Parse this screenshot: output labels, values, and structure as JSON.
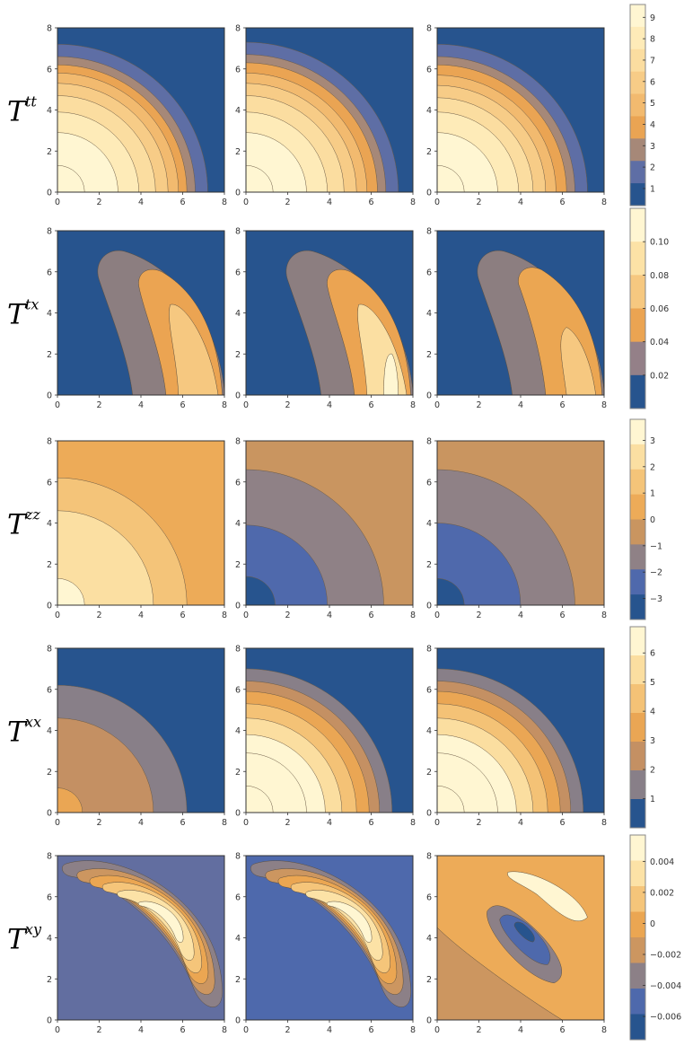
{
  "chart_data": [
    {
      "type": "contour",
      "row_label": {
        "base": "T",
        "sup": "tt"
      },
      "panels": 3,
      "x_ticks": [
        "0",
        "2",
        "4",
        "6",
        "8"
      ],
      "y_ticks": [
        "0",
        "2",
        "4",
        "6",
        "8"
      ],
      "xlim": [
        0,
        8
      ],
      "ylim": [
        0,
        8
      ],
      "contour_shape": "radial",
      "contour_radii": [
        [
          1.3,
          2.9,
          3.9,
          4.7,
          5.3,
          5.8,
          6.2,
          6.6,
          7.2
        ],
        [
          1.3,
          2.9,
          3.9,
          4.7,
          5.3,
          5.8,
          6.3,
          6.7,
          7.3
        ],
        [
          1.3,
          2.9,
          3.9,
          4.6,
          5.2,
          5.7,
          6.2,
          6.6,
          7.2
        ]
      ],
      "colorbar": {
        "ticks": [
          "9",
          "8",
          "7",
          "6",
          "5",
          "4",
          "3",
          "2",
          "1"
        ],
        "min": 0.2,
        "max": 9.6,
        "tick_values": [
          9,
          8,
          7,
          6,
          5,
          4,
          3,
          2,
          1
        ]
      }
    },
    {
      "type": "contour",
      "row_label": {
        "base": "T",
        "sup": "tx"
      },
      "panels": 3,
      "x_ticks": [
        "0",
        "2",
        "4",
        "6",
        "8"
      ],
      "y_ticks": [
        "0",
        "2",
        "4",
        "6",
        "8"
      ],
      "xlim": [
        0,
        8
      ],
      "ylim": [
        0,
        8
      ],
      "contour_shape": "crescent",
      "colorbar": {
        "ticks": [
          "0.10",
          "0.08",
          "0.06",
          "0.04",
          "0.02"
        ],
        "min": 0.0,
        "max": 0.12,
        "tick_values": [
          0.1,
          0.08,
          0.06,
          0.04,
          0.02
        ]
      }
    },
    {
      "type": "contour",
      "row_label": {
        "base": "T",
        "sup": "zz"
      },
      "panels": 3,
      "x_ticks": [
        "0",
        "2",
        "4",
        "6",
        "8"
      ],
      "y_ticks": [
        "0",
        "2",
        "4",
        "6",
        "8"
      ],
      "xlim": [
        0,
        8
      ],
      "ylim": [
        0,
        8
      ],
      "contour_shape": "radial",
      "contour_radii": [
        [
          1.3,
          4.6,
          6.2
        ],
        [
          1.4,
          3.9,
          6.6
        ],
        [
          1.3,
          4.0,
          6.6
        ]
      ],
      "colorbar": {
        "ticks": [
          "3",
          "2",
          "1",
          "0",
          "−1",
          "−2",
          "−3"
        ],
        "min": -3.8,
        "max": 3.8,
        "tick_values": [
          3,
          2,
          1,
          0,
          -1,
          -2,
          -3
        ]
      }
    },
    {
      "type": "contour",
      "row_label": {
        "base": "T",
        "sup": "xx"
      },
      "panels": 3,
      "x_ticks": [
        "0",
        "2",
        "4",
        "6",
        "8"
      ],
      "y_ticks": [
        "0",
        "2",
        "4",
        "6",
        "8"
      ],
      "xlim": [
        0,
        8
      ],
      "ylim": [
        0,
        8
      ],
      "contour_shape": "radial",
      "contour_radii": [
        [
          1.2,
          4.6,
          6.2
        ],
        [
          1.3,
          2.9,
          3.8,
          4.6,
          5.3,
          5.9,
          6.4,
          7.0
        ],
        [
          1.3,
          2.9,
          3.8,
          4.6,
          5.3,
          5.9,
          6.4,
          7.0
        ]
      ],
      "colorbar": {
        "ticks": [
          "6",
          "5",
          "4",
          "3",
          "2",
          "1"
        ],
        "min": 0.0,
        "max": 6.9,
        "tick_values": [
          6,
          5,
          4,
          3,
          2,
          1
        ]
      }
    },
    {
      "type": "contour",
      "row_label": {
        "base": "T",
        "sup": "xy"
      },
      "panels": 3,
      "x_ticks": [
        "0",
        "2",
        "4",
        "6",
        "8"
      ],
      "y_ticks": [
        "0",
        "2",
        "4",
        "6",
        "8"
      ],
      "xlim": [
        0,
        8
      ],
      "ylim": [
        0,
        8
      ],
      "contour_shape": "diagonal",
      "colorbar": {
        "ticks": [
          "0.004",
          "0.002",
          "0",
          "−0.002",
          "−0.004",
          "−0.006"
        ],
        "min": -0.0075,
        "max": 0.0057,
        "tick_values": [
          0.004,
          0.002,
          0,
          -0.002,
          -0.004,
          -0.006
        ]
      }
    }
  ]
}
